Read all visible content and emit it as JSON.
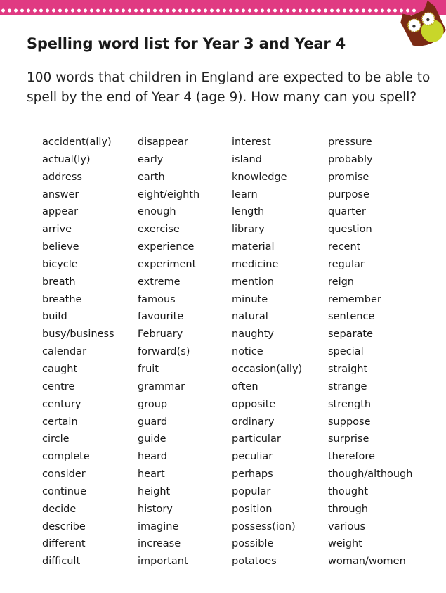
{
  "title": "Spelling word list for Year 3 and Year 4",
  "subtitle": "100 words that children in England are expected to be able to spell by the end of Year 4 (age 9). How many can you spell?",
  "colors": {
    "banner": "#e03a82",
    "owl_body": "#7a2a14",
    "owl_belly": "#c8d62a"
  },
  "columns": [
    [
      "accident(ally)",
      "actual(ly)",
      "address",
      "answer",
      "appear",
      "arrive",
      "believe",
      "bicycle",
      "breath",
      "breathe",
      "build",
      "busy/business",
      "calendar",
      "caught",
      "centre",
      "century",
      "certain",
      "circle",
      "complete",
      "consider",
      "continue",
      "decide",
      "describe",
      "different",
      "difficult"
    ],
    [
      "disappear",
      "early",
      "earth",
      "eight/eighth",
      "enough",
      "exercise",
      "experience",
      "experiment",
      "extreme",
      "famous",
      "favourite",
      "February",
      "forward(s)",
      "fruit",
      "grammar",
      "group",
      "guard",
      "guide",
      "heard",
      "heart",
      "height",
      "history",
      "imagine",
      "increase",
      "important"
    ],
    [
      "interest",
      "island",
      "knowledge",
      "learn",
      "length",
      "library",
      "material",
      "medicine",
      "mention",
      "minute",
      "natural",
      "naughty",
      "notice",
      "occasion(ally)",
      "often",
      "opposite",
      "ordinary",
      "particular",
      "peculiar",
      "perhaps",
      "popular",
      "position",
      "possess(ion)",
      "possible",
      "potatoes"
    ],
    [
      "pressure",
      "probably",
      "promise",
      "purpose",
      "quarter",
      "question",
      "recent",
      "regular",
      "reign",
      "remember",
      "sentence",
      "separate",
      "special",
      "straight",
      "strange",
      "strength",
      "suppose",
      "surprise",
      "therefore",
      "though/although",
      "thought",
      "through",
      "various",
      "weight",
      "woman/women"
    ]
  ]
}
